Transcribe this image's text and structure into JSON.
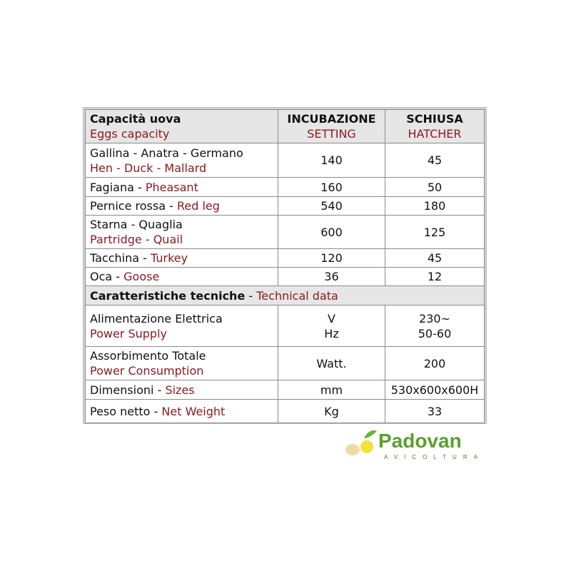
{
  "header": {
    "label_it": "Capacità uova",
    "label_en": "Eggs capacity",
    "col1_it": "INCUBAZIONE",
    "col1_en": "SETTING",
    "col2_it": "SCHIUSA",
    "col2_en": "HATCHER"
  },
  "capacity": [
    {
      "it": "Gallina - Anatra - Germano",
      "en": "Hen - Duck - Mallard",
      "setting": "140",
      "hatcher": "45",
      "two": true
    },
    {
      "it": "Fagiana - ",
      "en": "Pheasant",
      "setting": "160",
      "hatcher": "50"
    },
    {
      "it": "Pernice rossa - ",
      "en": "Red leg",
      "setting": "540",
      "hatcher": "180"
    },
    {
      "it": "Starna - Quaglia",
      "en": "Partridge - Quail",
      "setting": "600",
      "hatcher": "125",
      "two": true
    },
    {
      "it": "Tacchina - ",
      "en": "Turkey",
      "setting": "120",
      "hatcher": "45"
    },
    {
      "it": "Oca - ",
      "en": "Goose",
      "setting": "36",
      "hatcher": "12"
    }
  ],
  "section": {
    "it": "Caratteristiche tecniche",
    "sep": " - ",
    "en": "Technical data"
  },
  "technical": [
    {
      "it": "Alimentazione Elettrica",
      "en": "Power Supply",
      "unit": "V",
      "unit2": "Hz",
      "value": "230~",
      "value2": "50-60",
      "two": true
    },
    {
      "it": "Assorbimento Totale",
      "en": "Power Consumption",
      "unit": "Watt.",
      "value": "200",
      "two": true
    },
    {
      "it": "Dimensioni - ",
      "en": "Sizes",
      "unit": "mm",
      "value": "530x600x600H"
    },
    {
      "it": "Peso netto - ",
      "en": "Net Weight",
      "unit": "Kg",
      "value": "33"
    }
  ],
  "logo": {
    "name": "Padovan",
    "sub": "AVICOLTURA"
  },
  "colors": {
    "accent_red": "#8b1c22",
    "logo_green": "#5aa02c"
  }
}
